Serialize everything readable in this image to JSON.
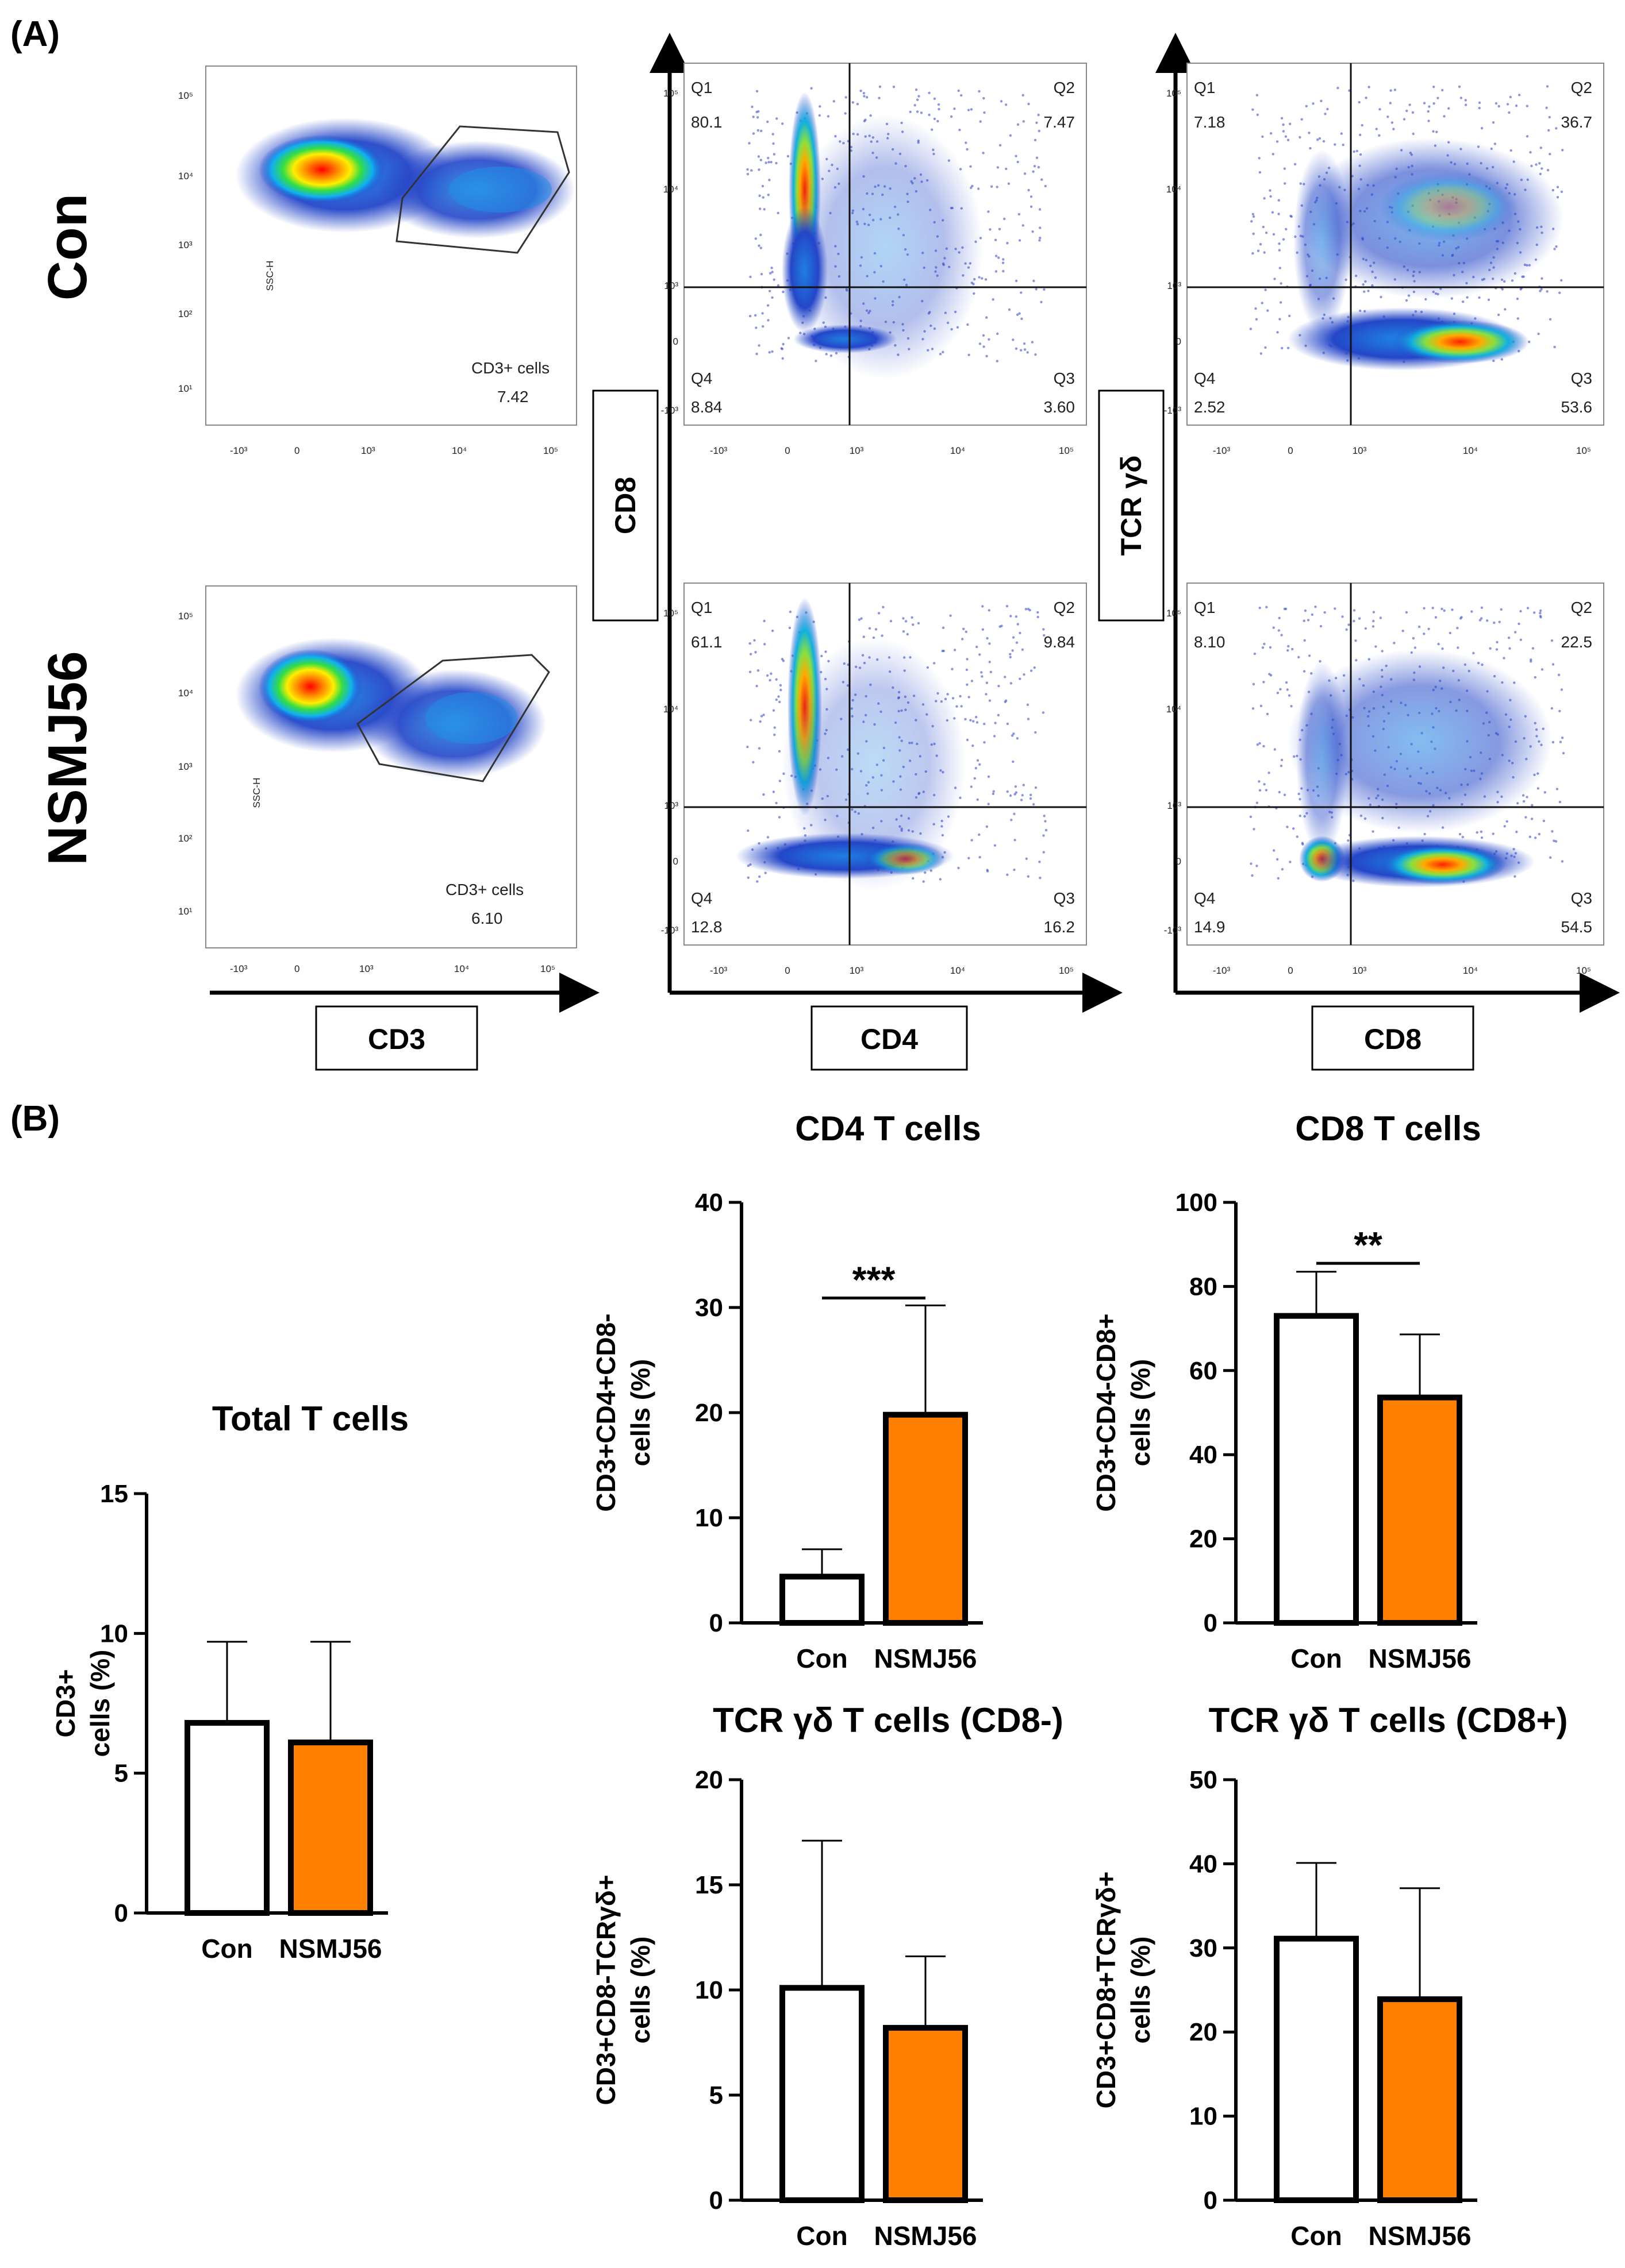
{
  "panel_a_label": "(A)",
  "panel_b_label": "(B)",
  "groups": [
    "Con",
    "NSMJ56"
  ],
  "flow": {
    "ssc_con": "SSC-H",
    "ssc_nsmj": "SSC-H",
    "axis_boxes": {
      "cd8": "CD8",
      "tcr": "TCR γδ",
      "cd3": "CD3",
      "cd4": "CD4",
      "cd8_bottom": "CD8"
    },
    "y_ticks": [
      "10⁵",
      "10⁴",
      "10³",
      "10²",
      "10¹"
    ],
    "quad_y_ticks": [
      "10⁵",
      "10⁴",
      "10³",
      "0",
      "-10³"
    ],
    "x_ticks": [
      "-10³",
      "0",
      "10³",
      "10⁴",
      "10⁵"
    ],
    "gates": [
      {
        "name": "CD3+ cells",
        "value": "7.42"
      },
      {
        "name": "CD3+ cells",
        "value": "6.10"
      }
    ],
    "quads": [
      {
        "q1": "Q1",
        "v1": "80.1",
        "q2": "Q2",
        "v2": "7.47",
        "q3": "Q3",
        "v3": "3.60",
        "q4": "Q4",
        "v4": "8.84"
      },
      {
        "q1": "Q1",
        "v1": "7.18",
        "q2": "Q2",
        "v2": "36.7",
        "q3": "Q3",
        "v3": "53.6",
        "q4": "Q4",
        "v4": "2.52"
      },
      {
        "q1": "Q1",
        "v1": "61.1",
        "q2": "Q2",
        "v2": "9.84",
        "q3": "Q3",
        "v3": "16.2",
        "q4": "Q4",
        "v4": "12.8"
      },
      {
        "q1": "Q1",
        "v1": "8.10",
        "q2": "Q2",
        "v2": "22.5",
        "q3": "Q3",
        "v3": "54.5",
        "q4": "Q4",
        "v4": "14.9"
      }
    ]
  },
  "colors": {
    "con_fill": "#ffffff",
    "nsmj_fill": "#ff8000",
    "bar_stroke": "#000000"
  },
  "chart_data": [
    {
      "type": "bar",
      "title": "Total T cells",
      "ylabel": "CD3+ cells (%)",
      "categories": [
        "Con",
        "NSMJ56"
      ],
      "values": [
        6.8,
        6.1
      ],
      "errors": [
        2.9,
        3.6
      ],
      "ylim": [
        0,
        15
      ],
      "yticks": [
        0,
        5,
        10,
        15
      ],
      "significance": ""
    },
    {
      "type": "bar",
      "title": "CD4 T cells",
      "ylabel": "CD3+CD4+CD8- cells (%)",
      "categories": [
        "Con",
        "NSMJ56"
      ],
      "values": [
        4.4,
        19.8
      ],
      "errors": [
        2.6,
        10.4
      ],
      "ylim": [
        0,
        40
      ],
      "yticks": [
        0,
        10,
        20,
        30,
        40
      ],
      "significance": "***"
    },
    {
      "type": "bar",
      "title": "CD8 T cells",
      "ylabel": "CD3+CD4-CD8+ cells (%)",
      "categories": [
        "Con",
        "NSMJ56"
      ],
      "values": [
        73,
        53.6
      ],
      "errors": [
        10.5,
        15
      ],
      "ylim": [
        0,
        100
      ],
      "yticks": [
        0,
        20,
        40,
        60,
        80,
        100
      ],
      "significance": "**"
    },
    {
      "type": "bar",
      "title": "TCR γδ T cells (CD8-)",
      "ylabel": "CD3+CD8-TCRγδ+ cells (%)",
      "categories": [
        "Con",
        "NSMJ56"
      ],
      "values": [
        10.1,
        8.2
      ],
      "errors": [
        7.0,
        3.4
      ],
      "ylim": [
        0,
        20
      ],
      "yticks": [
        0,
        5,
        10,
        15,
        20
      ],
      "significance": ""
    },
    {
      "type": "bar",
      "title": "TCR γδ T cells (CD8+)",
      "ylabel": "CD3+CD8+TCRγδ+ cells (%)",
      "categories": [
        "Con",
        "NSMJ56"
      ],
      "values": [
        31.1,
        23.9
      ],
      "errors": [
        9.0,
        13.2
      ],
      "ylim": [
        0,
        50
      ],
      "yticks": [
        0,
        10,
        20,
        30,
        40,
        50
      ],
      "significance": ""
    }
  ]
}
